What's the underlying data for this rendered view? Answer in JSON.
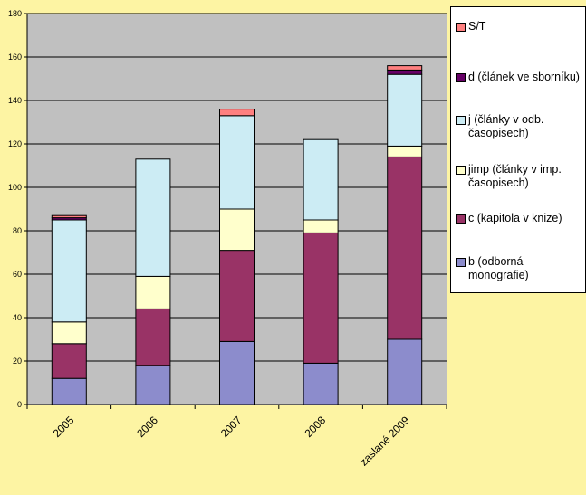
{
  "chart_data": {
    "type": "bar",
    "stacked": true,
    "title": "",
    "xlabel": "",
    "ylabel": "",
    "ylim": [
      0,
      180
    ],
    "yticks": [
      0,
      20,
      40,
      60,
      80,
      100,
      120,
      140,
      160,
      180
    ],
    "grid": true,
    "legend_position": "right",
    "categories": [
      "2005",
      "2006",
      "2007",
      "2008",
      "zaslané 2009"
    ],
    "series": [
      {
        "name": "b (odborná monografie)",
        "color": "#8c8ccc",
        "values": [
          12,
          18,
          29,
          19,
          30
        ]
      },
      {
        "name": "c (kapitola v knize)",
        "color": "#993366",
        "values": [
          16,
          26,
          42,
          60,
          84
        ]
      },
      {
        "name": "jimp (články v imp. časopisech)",
        "color": "#ffffcc",
        "values": [
          10,
          15,
          19,
          6,
          5
        ]
      },
      {
        "name": "j (články v odb. časopisech)",
        "color": "#ccecf4",
        "values": [
          47,
          54,
          43,
          37,
          33
        ]
      },
      {
        "name": "d (článek ve sborníku)",
        "color": "#660066",
        "values": [
          1,
          0,
          0,
          0,
          2
        ]
      },
      {
        "name": "S/T",
        "color": "#ff8080",
        "values": [
          1,
          0,
          3,
          0,
          2
        ]
      }
    ]
  },
  "legend": {
    "items": [
      {
        "label": "S/T",
        "color": "#ff8080"
      },
      {
        "label": "d (článek ve sborníku)",
        "color": "#660066"
      },
      {
        "label": "j (články v odb. časopisech)",
        "color": "#ccecf4"
      },
      {
        "label": "jimp (články v imp. časopisech)",
        "color": "#ffffcc"
      },
      {
        "label": "c (kapitola v knize)",
        "color": "#993366"
      },
      {
        "label": "b (odborná monografie)",
        "color": "#8c8ccc"
      }
    ]
  },
  "colors": {
    "page_background": "#fdf4a3",
    "plot_background": "#c0c0c0",
    "bar_outline": "#000000"
  }
}
